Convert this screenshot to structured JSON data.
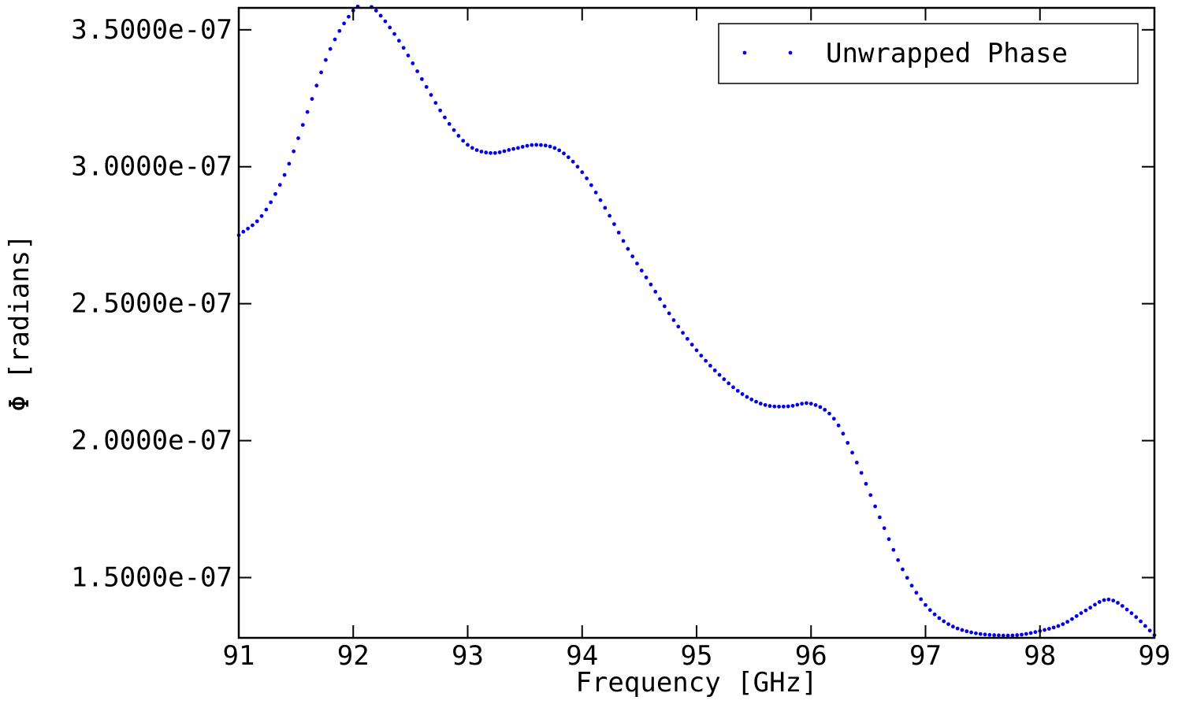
{
  "chart_data": {
    "type": "scatter",
    "xlabel": "Frequency [GHz]",
    "ylabel": "Φ [radians]",
    "xlim": [
      91,
      99
    ],
    "ylim": [
      1.28e-07,
      3.58e-07
    ],
    "x_ticks": [
      91,
      92,
      93,
      94,
      95,
      96,
      97,
      98,
      99
    ],
    "x_tick_labels": [
      "91",
      "92",
      "93",
      "94",
      "95",
      "96",
      "97",
      "98",
      "99"
    ],
    "y_ticks": [
      1.5e-07,
      2e-07,
      2.5e-07,
      3e-07,
      3.5e-07
    ],
    "y_tick_labels": [
      "1.5000e-07",
      "2.0000e-07",
      "2.5000e-07",
      "3.0000e-07",
      "3.5000e-07"
    ],
    "grid": false,
    "legend_position": "top-right",
    "series": [
      {
        "name": "Unwrapped Phase",
        "color": "#0000ee",
        "marker": "dot",
        "x": [
          91.0,
          91.2,
          91.4,
          91.6,
          91.8,
          92.0,
          92.1,
          92.2,
          92.4,
          92.6,
          92.8,
          93.0,
          93.2,
          93.4,
          93.6,
          93.8,
          94.0,
          94.2,
          94.4,
          94.6,
          94.8,
          95.0,
          95.2,
          95.4,
          95.6,
          95.8,
          96.0,
          96.2,
          96.4,
          96.6,
          96.8,
          97.0,
          97.2,
          97.4,
          97.6,
          97.8,
          98.0,
          98.2,
          98.4,
          98.6,
          98.8,
          99.0
        ],
        "y": [
          2.75e-07,
          2.82e-07,
          2.97e-07,
          3.2e-07,
          3.43e-07,
          3.57e-07,
          3.59e-07,
          3.57e-07,
          3.46e-07,
          3.32e-07,
          3.18e-07,
          3.08e-07,
          3.05e-07,
          3.065e-07,
          3.08e-07,
          3.06e-07,
          2.98e-07,
          2.85e-07,
          2.7e-07,
          2.57e-07,
          2.44e-07,
          2.33e-07,
          2.24e-07,
          2.17e-07,
          2.13e-07,
          2.125e-07,
          2.135e-07,
          2.08e-07,
          1.92e-07,
          1.72e-07,
          1.53e-07,
          1.4e-07,
          1.33e-07,
          1.3e-07,
          1.29e-07,
          1.29e-07,
          1.305e-07,
          1.33e-07,
          1.38e-07,
          1.42e-07,
          1.37e-07,
          1.29e-07
        ]
      }
    ]
  }
}
